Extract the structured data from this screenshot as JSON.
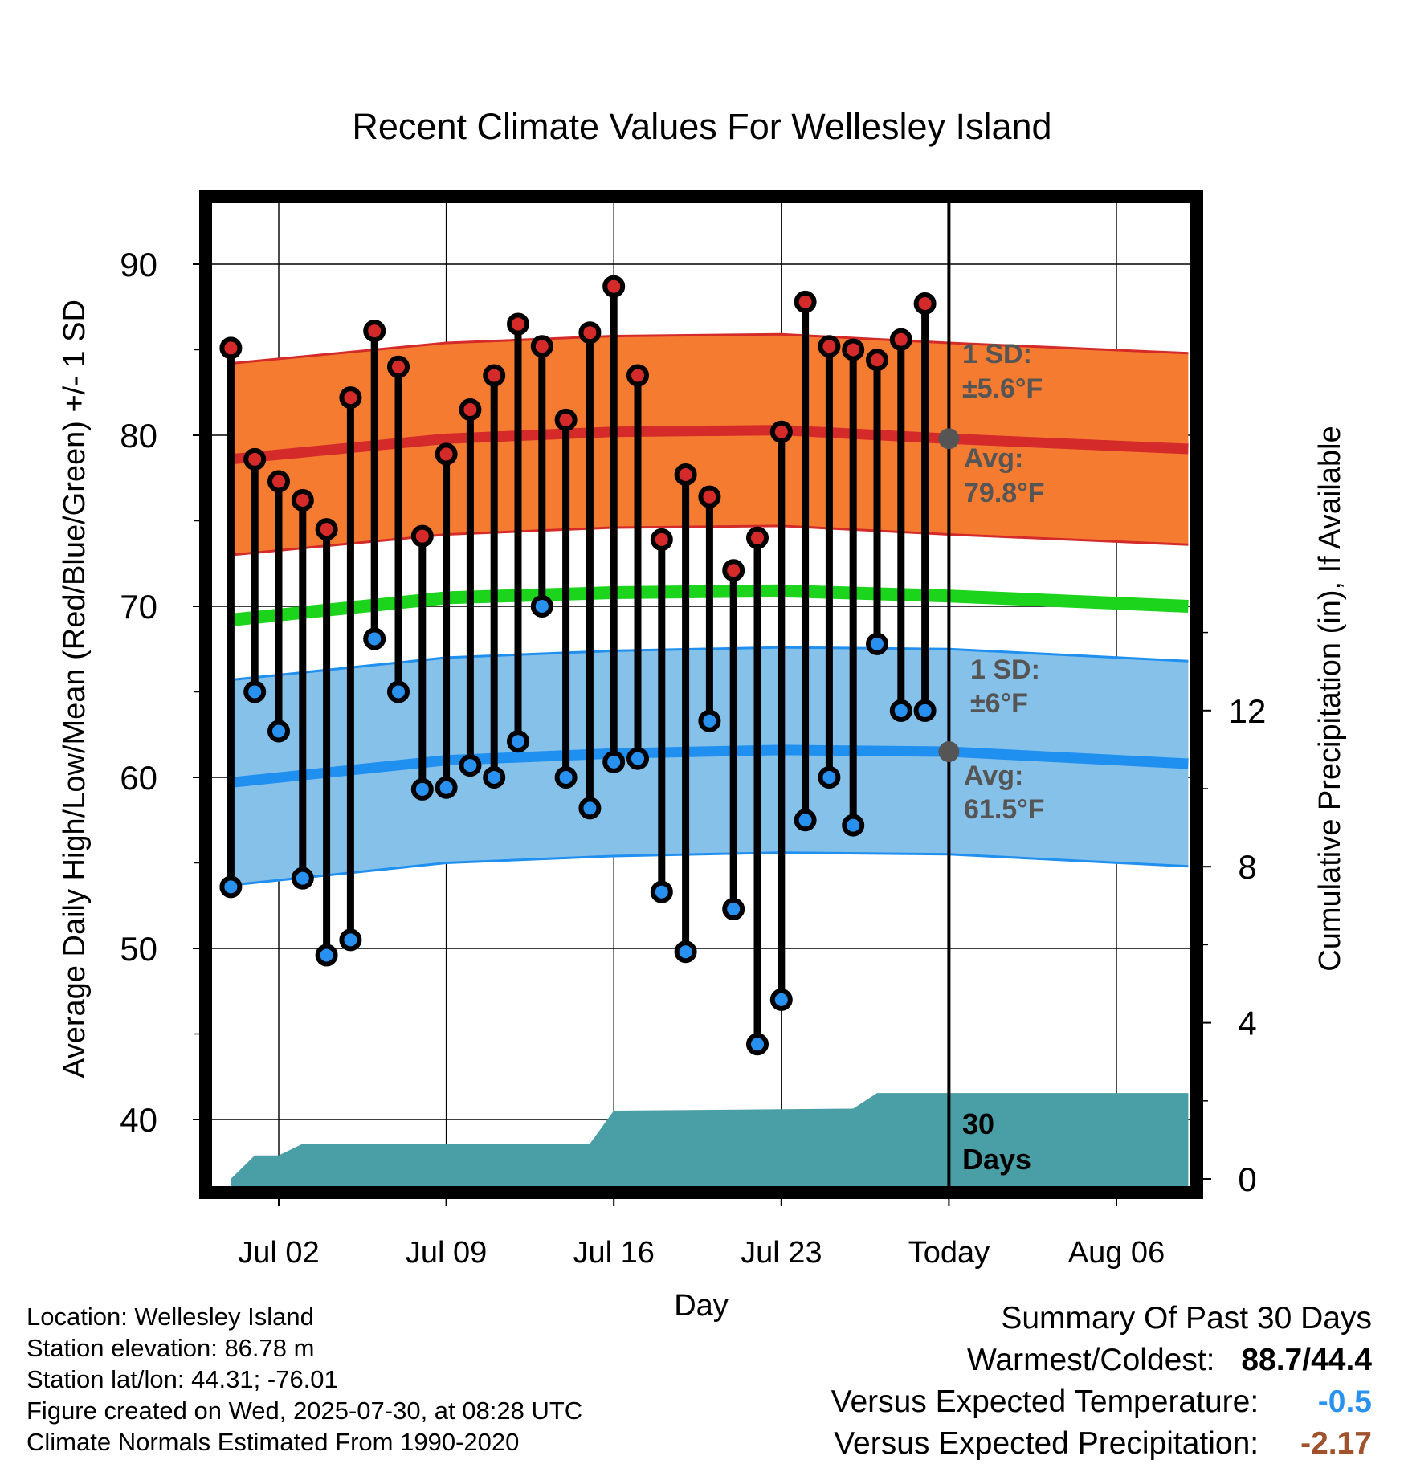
{
  "chart_data": {
    "type": "line",
    "title": "Recent Climate Values For Wellesley Island",
    "xlabel": "Day",
    "ylabel": "Average Daily High/Low/Mean (Red/Blue/Green) +/- 1 SD",
    "y2label": "Cumulative Precipitation (in), If Available",
    "x_ticks": [
      "Jul 02",
      "Jul 09",
      "Jul 16",
      "Jul 23",
      "Today",
      "Aug 06"
    ],
    "y_ticks": [
      40,
      50,
      60,
      70,
      80,
      90
    ],
    "y2_ticks": [
      0,
      4,
      8,
      12
    ],
    "ylim": [
      36.9,
      93.8
    ],
    "y2lim": [
      0,
      23.6
    ],
    "grid": true,
    "today_marker": "Today",
    "days_label": "30 Days",
    "days": [
      "Jun 30",
      "Jul 01",
      "Jul 02",
      "Jul 03",
      "Jul 04",
      "Jul 05",
      "Jul 06",
      "Jul 07",
      "Jul 08",
      "Jul 09",
      "Jul 10",
      "Jul 11",
      "Jul 12",
      "Jul 13",
      "Jul 14",
      "Jul 15",
      "Jul 16",
      "Jul 17",
      "Jul 18",
      "Jul 19",
      "Jul 20",
      "Jul 21",
      "Jul 22",
      "Jul 23",
      "Jul 24",
      "Jul 25",
      "Jul 26",
      "Jul 27",
      "Jul 28",
      "Jul 29"
    ],
    "series": [
      {
        "name": "High",
        "color": "#d42a2a",
        "values": [
          85.1,
          78.6,
          77.3,
          76.2,
          74.5,
          82.2,
          86.1,
          84.0,
          74.1,
          78.9,
          81.5,
          83.5,
          86.5,
          85.2,
          80.9,
          86.0,
          88.7,
          83.5,
          73.9,
          77.7,
          76.4,
          72.1,
          74.0,
          80.2,
          87.8,
          85.2,
          85.0,
          84.4,
          85.6,
          87.7
        ]
      },
      {
        "name": "Low",
        "color": "#2891f0",
        "values": [
          53.6,
          65.0,
          62.7,
          54.1,
          49.6,
          50.5,
          68.1,
          65.0,
          59.3,
          59.4,
          60.7,
          60.0,
          62.1,
          70.0,
          60.0,
          58.2,
          60.9,
          61.1,
          53.3,
          49.8,
          63.3,
          52.3,
          44.4,
          47.0,
          57.5,
          60.0,
          57.2,
          67.8,
          63.9,
          63.9
        ]
      }
    ],
    "normals": {
      "x": [
        "Jun 30",
        "Jul 09",
        "Jul 16",
        "Jul 23",
        "Jul 30",
        "Aug 09"
      ],
      "avg_high": [
        78.6,
        79.8,
        80.2,
        80.3,
        79.8,
        79.2
      ],
      "avg_low": [
        59.7,
        61.0,
        61.4,
        61.6,
        61.5,
        60.8
      ],
      "avg_mean": [
        69.2,
        70.5,
        70.8,
        70.9,
        70.6,
        70.0
      ],
      "sd_high": 5.6,
      "sd_low": 6.0
    },
    "normal_colors": {
      "high_band": "#f47b30",
      "high_line": "#d42a2a",
      "low_band": "#85c1e9",
      "low_line": "#1f8ff0",
      "mean_line": "#1cd41c",
      "precip": "#4a9ea6",
      "today_dot": "#555555"
    },
    "precip_cumulative": {
      "x": [
        "Jun 30",
        "Jul 01",
        "Jul 02",
        "Jul 03",
        "Jul 15",
        "Jul 16",
        "Jul 26",
        "Jul 27",
        "Jul 30",
        "Aug 09"
      ],
      "values": [
        0.0,
        0.6,
        0.6,
        0.9,
        0.9,
        1.75,
        1.8,
        2.2,
        2.2,
        2.2
      ]
    },
    "annotations": [
      {
        "label_top": "1 SD:",
        "label_bottom": "±5.6°F",
        "ref": "high_sd"
      },
      {
        "label_top": "Avg:",
        "label_bottom": "79.8°F",
        "ref": "high_avg"
      },
      {
        "label_top": "1 SD:",
        "label_bottom": "±6°F",
        "ref": "low_sd"
      },
      {
        "label_top": "Avg:",
        "label_bottom": "61.5°F",
        "ref": "low_avg"
      }
    ]
  },
  "info": {
    "location": "Location: Wellesley Island",
    "elevation": "Station elevation: 86.78 m",
    "latlon": "Station lat/lon: 44.31; -76.01",
    "created": "Figure created on Wed, 2025-07-30, at 08:28 UTC",
    "normals_period": "Climate Normals Estimated From 1990-2020"
  },
  "summary": {
    "title": "Summary Of Past 30 Days",
    "warm_cold_label": "Warmest/Coldest:",
    "warm_cold_value": "88.7/44.4",
    "temp_label": "Versus Expected Temperature:",
    "temp_value": "-0.5",
    "temp_color": "#2b91ee",
    "precip_label": "Versus Expected Precipitation:",
    "precip_value": "-2.17",
    "precip_color": "#a0522d"
  }
}
